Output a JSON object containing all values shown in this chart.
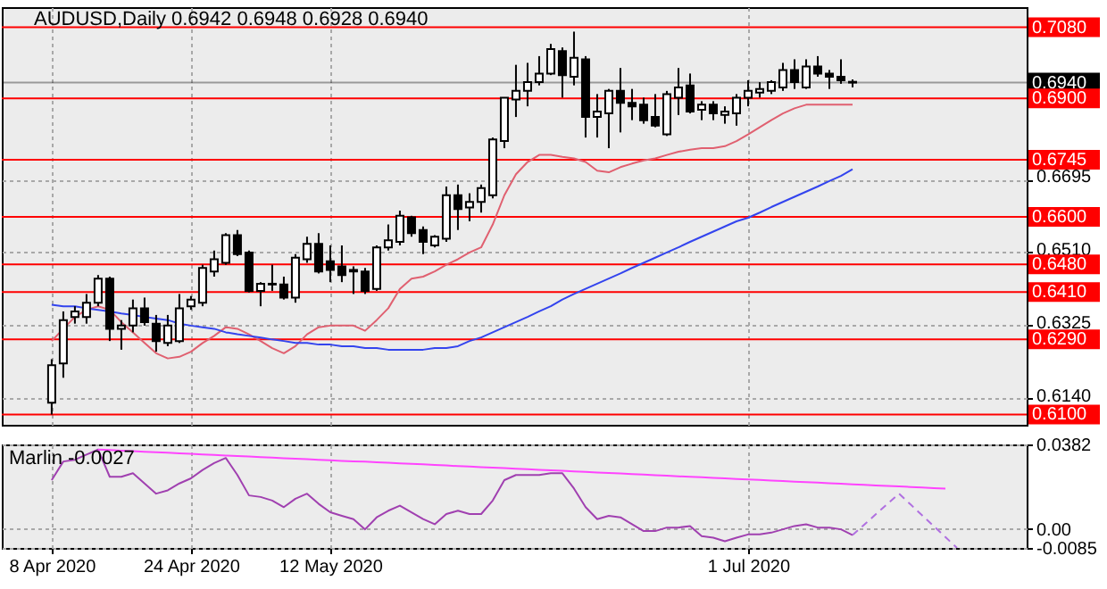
{
  "chart_data": [
    {
      "type": "candlestick",
      "title": "AUDUSD,Daily 0.6942 0.6948 0.6928 0.6940",
      "categories": [
        null,
        null,
        null,
        null,
        null,
        null,
        null,
        null,
        null,
        null,
        null,
        null,
        null,
        null,
        null,
        null,
        null,
        null,
        null,
        null,
        null,
        null,
        null,
        null,
        null,
        null,
        null,
        null,
        null,
        null,
        null,
        null,
        null,
        null,
        null,
        null,
        null,
        null,
        null,
        null,
        null,
        null,
        null,
        null,
        null,
        null,
        null,
        null,
        null,
        null,
        null,
        null,
        null,
        null,
        null,
        null,
        null,
        null,
        null,
        null,
        null,
        null,
        null,
        null,
        null,
        null,
        null,
        null,
        null,
        null,
        null,
        null,
        null,
        null,
        null,
        null,
        null,
        null,
        null,
        null,
        null,
        null,
        null,
        null,
        null
      ],
      "ohlc": [
        [
          0.613,
          0.624,
          0.61,
          0.6225
        ],
        [
          0.6229,
          0.6361,
          0.6193,
          0.6339
        ],
        [
          0.6347,
          0.6374,
          0.633,
          0.6361
        ],
        [
          0.6347,
          0.6405,
          0.633,
          0.6383
        ],
        [
          0.6383,
          0.6453,
          0.6374,
          0.6444
        ],
        [
          0.6444,
          0.6449,
          0.6286,
          0.6317
        ],
        [
          0.6317,
          0.6339,
          0.6264,
          0.6325
        ],
        [
          0.6325,
          0.6391,
          0.6308,
          0.6369
        ],
        [
          0.6369,
          0.6396,
          0.6325,
          0.6334
        ],
        [
          0.633,
          0.6352,
          0.6259,
          0.6286
        ],
        [
          0.6281,
          0.6352,
          0.6273,
          0.6325
        ],
        [
          0.6286,
          0.6405,
          0.6281,
          0.6369
        ],
        [
          0.6374,
          0.64,
          0.6365,
          0.6391
        ],
        [
          0.6383,
          0.6479,
          0.6374,
          0.6471
        ],
        [
          0.6462,
          0.6515,
          0.6449,
          0.6493
        ],
        [
          0.6484,
          0.6559,
          0.6479,
          0.6554
        ],
        [
          0.6554,
          0.6567,
          0.6501,
          0.6506
        ],
        [
          0.651,
          0.6515,
          0.6409,
          0.6413
        ],
        [
          0.6413,
          0.6435,
          0.6374,
          0.6431
        ],
        [
          0.6431,
          0.6479,
          0.6413,
          0.6429
        ],
        [
          0.6429,
          0.6449,
          0.6391,
          0.6396
        ],
        [
          0.6396,
          0.6506,
          0.6383,
          0.6497
        ],
        [
          0.6493,
          0.655,
          0.6484,
          0.6532
        ],
        [
          0.6532,
          0.6559,
          0.6457,
          0.6462
        ],
        [
          0.6488,
          0.6528,
          0.6435,
          0.6466
        ],
        [
          0.6475,
          0.6528,
          0.6435,
          0.6453
        ],
        [
          0.6462,
          0.6475,
          0.6405,
          0.6466
        ],
        [
          0.6462,
          0.6471,
          0.6405,
          0.6413
        ],
        [
          0.6418,
          0.6528,
          0.6413,
          0.6523
        ],
        [
          0.6523,
          0.6581,
          0.6515,
          0.6541
        ],
        [
          0.6537,
          0.6616,
          0.6528,
          0.6603
        ],
        [
          0.6599,
          0.6603,
          0.655,
          0.6559
        ],
        [
          0.6567,
          0.6576,
          0.6506,
          0.6537
        ],
        [
          0.6528,
          0.6554,
          0.6523,
          0.655
        ],
        [
          0.6545,
          0.6677,
          0.6537,
          0.6655
        ],
        [
          0.6655,
          0.6682,
          0.6567,
          0.662
        ],
        [
          0.6624,
          0.666,
          0.6589,
          0.6638
        ],
        [
          0.6638,
          0.6682,
          0.6611,
          0.6673
        ],
        [
          0.6655,
          0.6801,
          0.6647,
          0.6796
        ],
        [
          0.6792,
          0.6902,
          0.6774,
          0.6902
        ],
        [
          0.6897,
          0.6985,
          0.6853,
          0.6919
        ],
        [
          0.6919,
          0.699,
          0.688,
          0.6941
        ],
        [
          0.6941,
          0.7007,
          0.6933,
          0.6963
        ],
        [
          0.6963,
          0.7038,
          0.6959,
          0.7025
        ],
        [
          0.702,
          0.7029,
          0.6902,
          0.6959
        ],
        [
          0.6955,
          0.7069,
          0.6933,
          0.7003
        ],
        [
          0.6999,
          0.7007,
          0.6801,
          0.6853
        ],
        [
          0.6853,
          0.6911,
          0.6801,
          0.6867
        ],
        [
          0.6862,
          0.6924,
          0.6774,
          0.6919
        ],
        [
          0.6919,
          0.6977,
          0.6814,
          0.6889
        ],
        [
          0.6889,
          0.6924,
          0.6845,
          0.688
        ],
        [
          0.6884,
          0.6902,
          0.6836,
          0.6845
        ],
        [
          0.6853,
          0.6911,
          0.6827,
          0.6831
        ],
        [
          0.6809,
          0.6919,
          0.6805,
          0.6911
        ],
        [
          0.6902,
          0.6977,
          0.6858,
          0.6928
        ],
        [
          0.6933,
          0.6963,
          0.6862,
          0.6867
        ],
        [
          0.6871,
          0.6893,
          0.6845,
          0.6884
        ],
        [
          0.6884,
          0.6893,
          0.6845,
          0.6862
        ],
        [
          0.6858,
          0.688,
          0.6836,
          0.6867
        ],
        [
          0.6862,
          0.6911,
          0.6831,
          0.6902
        ],
        [
          0.6902,
          0.6946,
          0.688,
          0.6919
        ],
        [
          0.6915,
          0.6941,
          0.6902,
          0.6924
        ],
        [
          0.6919,
          0.6946,
          0.6911,
          0.6941
        ],
        [
          0.6928,
          0.699,
          0.6919,
          0.6972
        ],
        [
          0.6972,
          0.6999,
          0.6924,
          0.6941
        ],
        [
          0.6928,
          0.6999,
          0.6924,
          0.6981
        ],
        [
          0.6981,
          0.7007,
          0.6955,
          0.6963
        ],
        [
          0.6963,
          0.6972,
          0.6924,
          0.6955
        ],
        [
          0.6955,
          0.6999,
          0.6937,
          0.6946
        ],
        [
          0.6942,
          0.6948,
          0.6928,
          0.694
        ],
        null,
        null,
        null,
        null,
        null,
        null,
        null,
        null,
        null,
        null,
        null,
        null,
        null,
        null,
        null
      ],
      "series": [
        {
          "type": "line",
          "color": "#e06070",
          "values": [
            0.6286,
            0.6317,
            0.6347,
            0.6365,
            0.6374,
            0.6365,
            0.6334,
            0.6308,
            0.6281,
            0.6255,
            0.6242,
            0.6246,
            0.6259,
            0.6281,
            0.6299,
            0.6321,
            0.6317,
            0.6303,
            0.6286,
            0.6268,
            0.6255,
            0.6273,
            0.6303,
            0.6321,
            0.6325,
            0.6325,
            0.6325,
            0.6312,
            0.6339,
            0.6369,
            0.6418,
            0.6444,
            0.6449,
            0.6462,
            0.6479,
            0.6493,
            0.651,
            0.6523,
            0.6581,
            0.6655,
            0.6708,
            0.6739,
            0.6757,
            0.6757,
            0.6752,
            0.6748,
            0.6739,
            0.6717,
            0.6713,
            0.6726,
            0.6735,
            0.6743,
            0.6748,
            0.6757,
            0.6765,
            0.677,
            0.6774,
            0.6774,
            0.6779,
            0.6792,
            0.6809,
            0.6827,
            0.6845,
            0.6862,
            0.6875,
            0.6884,
            0.6884,
            0.6884,
            0.6884,
            0.6884,
            null,
            null,
            null,
            null,
            null,
            null,
            null,
            null,
            null,
            null,
            null,
            null,
            null,
            null,
            null
          ]
        },
        {
          "type": "line",
          "color": "#3344ee",
          "values": [
            0.6378,
            0.6374,
            0.6374,
            0.6369,
            0.6365,
            0.6361,
            0.6356,
            0.6352,
            0.6347,
            0.6343,
            0.6339,
            0.633,
            0.6325,
            0.6321,
            0.6317,
            0.6308,
            0.6303,
            0.6299,
            0.6295,
            0.629,
            0.6286,
            0.6281,
            0.6281,
            0.6277,
            0.6277,
            0.6273,
            0.6273,
            0.6268,
            0.6268,
            0.6264,
            0.6264,
            0.6264,
            0.6264,
            0.6268,
            0.6268,
            0.6273,
            0.6286,
            0.6295,
            0.6308,
            0.6321,
            0.6334,
            0.6347,
            0.6361,
            0.6374,
            0.6391,
            0.6405,
            0.6418,
            0.6431,
            0.6444,
            0.6457,
            0.6471,
            0.6484,
            0.6497,
            0.651,
            0.6523,
            0.6537,
            0.655,
            0.6563,
            0.6576,
            0.6589,
            0.6598,
            0.6611,
            0.6625,
            0.6638,
            0.6651,
            0.6664,
            0.6677,
            0.6691,
            0.6704,
            0.6721,
            null,
            null,
            null,
            null,
            null,
            null,
            null,
            null,
            null,
            null,
            null,
            null,
            null,
            null,
            null
          ]
        }
      ],
      "ref_lines": [
        {
          "axis": "y",
          "value": 0.708,
          "label": "0.7080",
          "color": "#ff0000"
        },
        {
          "axis": "y",
          "value": 0.694,
          "label": "0.6940",
          "color": "#000000"
        },
        {
          "axis": "y",
          "value": 0.69,
          "label": "0.6900",
          "color": "#ff0000"
        },
        {
          "axis": "y",
          "value": 0.6745,
          "label": "0.6745",
          "color": "#ff0000"
        },
        {
          "axis": "y",
          "value": 0.66,
          "label": "0.6600",
          "color": "#ff0000"
        },
        {
          "axis": "y",
          "value": 0.648,
          "label": "0.6480",
          "color": "#ff0000"
        },
        {
          "axis": "y",
          "value": 0.641,
          "label": "0.6410",
          "color": "#ff0000"
        },
        {
          "axis": "y",
          "value": 0.629,
          "label": "0.6290",
          "color": "#ff0000"
        },
        {
          "axis": "y",
          "value": 0.61,
          "label": "0.6100",
          "color": "#ff0000"
        }
      ],
      "ylim": [
        0.6074,
        0.7131
      ],
      "yticks": [
        {
          "value": 0.614,
          "label": "0.6140"
        },
        {
          "value": 0.6325,
          "label": "0.6325"
        },
        {
          "value": 0.651,
          "label": "0.6510"
        },
        {
          "value": 0.6695,
          "label": "0.6695"
        }
      ],
      "grid": true,
      "tick_labels": "y"
    },
    {
      "type": "line",
      "title": "Marlin -0.0027",
      "categories": [
        "8 Apr 2020",
        null,
        null,
        null,
        null,
        null,
        null,
        null,
        null,
        null,
        null,
        null,
        "24 Apr 2020",
        null,
        null,
        null,
        null,
        null,
        null,
        null,
        null,
        null,
        null,
        null,
        "12 May 2020",
        null,
        null,
        null,
        null,
        null,
        null,
        null,
        null,
        null,
        null,
        null,
        null,
        null,
        null,
        null,
        null,
        null,
        null,
        null,
        null,
        null,
        null,
        null,
        null,
        null,
        null,
        null,
        null,
        null,
        null,
        null,
        null,
        null,
        null,
        null,
        "1 Jul 2020",
        null,
        null,
        null,
        null,
        null,
        null,
        null,
        null,
        null,
        null,
        null,
        null,
        null,
        null,
        null,
        null,
        null,
        null,
        null,
        null,
        null,
        null,
        null,
        null
      ],
      "series": [
        {
          "color": "#a040b0",
          "values": [
            0.0221,
            0.0305,
            0.0313,
            0.0336,
            0.0359,
            0.0236,
            0.0236,
            0.0252,
            0.0206,
            0.016,
            0.0175,
            0.0206,
            0.0229,
            0.0267,
            0.0298,
            0.0321,
            0.0244,
            0.0152,
            0.0145,
            0.0129,
            0.0099,
            0.0137,
            0.016,
            0.0114,
            0.0076,
            0.006,
            0.0045,
            -0.0001,
            0.0053,
            0.0083,
            0.0106,
            0.0076,
            0.0045,
            0.0022,
            0.0068,
            0.0083,
            0.0068,
            0.0068,
            0.0129,
            0.0221,
            0.0244,
            0.0244,
            0.0244,
            0.0252,
            0.0252,
            0.0183,
            0.0099,
            0.0045,
            0.006,
            0.0053,
            0.0022,
            -0.0009,
            -0.0009,
            0.0007,
            0.0007,
            0.0014,
            -0.0032,
            -0.0039,
            -0.0055,
            -0.0039,
            -0.0024,
            -0.0024,
            -0.0016,
            -0.0001,
            0.0014,
            0.0022,
            0.0007,
            0.0007,
            -0.0001,
            -0.0027,
            null,
            null,
            null,
            null,
            null,
            null,
            null,
            null,
            null,
            null,
            null,
            null,
            null,
            null,
            null
          ]
        },
        {
          "color": "#ff44ff",
          "values": [
            null,
            null,
            null,
            null,
            0.0359,
            0.0357,
            0.0354,
            0.0352,
            0.0349,
            0.0347,
            0.0345,
            0.0342,
            0.034,
            0.0337,
            0.0335,
            0.0332,
            0.033,
            0.0328,
            0.0325,
            0.0323,
            0.032,
            0.0318,
            0.0316,
            0.0313,
            0.0311,
            0.0308,
            0.0306,
            0.0304,
            0.0301,
            0.0299,
            0.0296,
            0.0294,
            0.0292,
            0.0289,
            0.0287,
            0.0284,
            0.0282,
            0.0279,
            0.0277,
            0.0275,
            0.0272,
            0.027,
            0.0267,
            0.0265,
            0.0263,
            0.026,
            0.0258,
            0.0255,
            0.0253,
            0.0251,
            0.0248,
            0.0246,
            0.0243,
            0.0241,
            0.0238,
            0.0236,
            0.0234,
            0.0231,
            0.0229,
            0.0226,
            0.0224,
            0.0222,
            0.0219,
            0.0217,
            0.0214,
            0.0212,
            0.021,
            0.0207,
            0.0205,
            0.0202,
            0.02,
            0.0197,
            0.0195,
            0.0193,
            0.019,
            0.0188,
            0.0185,
            0.0183,
            null,
            null,
            null,
            null,
            null,
            null,
            null
          ]
        },
        {
          "color": "#b070e0",
          "line_style": "dashed",
          "values": [
            null,
            null,
            null,
            null,
            null,
            null,
            null,
            null,
            null,
            null,
            null,
            null,
            null,
            null,
            null,
            null,
            null,
            null,
            null,
            null,
            null,
            null,
            null,
            null,
            null,
            null,
            null,
            null,
            null,
            null,
            null,
            null,
            null,
            null,
            null,
            null,
            null,
            null,
            null,
            null,
            null,
            null,
            null,
            null,
            null,
            null,
            null,
            null,
            null,
            null,
            null,
            null,
            null,
            null,
            null,
            null,
            null,
            null,
            null,
            null,
            null,
            null,
            null,
            null,
            null,
            null,
            null,
            null,
            null,
            -0.0027,
            0.002,
            0.0067,
            0.0113,
            0.016,
            0.0111,
            0.0062,
            0.0013,
            -0.0036,
            -0.0085,
            null,
            null,
            null,
            null,
            null,
            null
          ]
        }
      ],
      "ylim": [
        -0.0085,
        0.0382
      ],
      "yticks": [
        {
          "value": -0.0085,
          "label": "-0.0085"
        },
        {
          "value": 0,
          "label": "0.00"
        },
        {
          "value": 0.0382,
          "label": "0.0382"
        }
      ],
      "grid": true
    }
  ]
}
